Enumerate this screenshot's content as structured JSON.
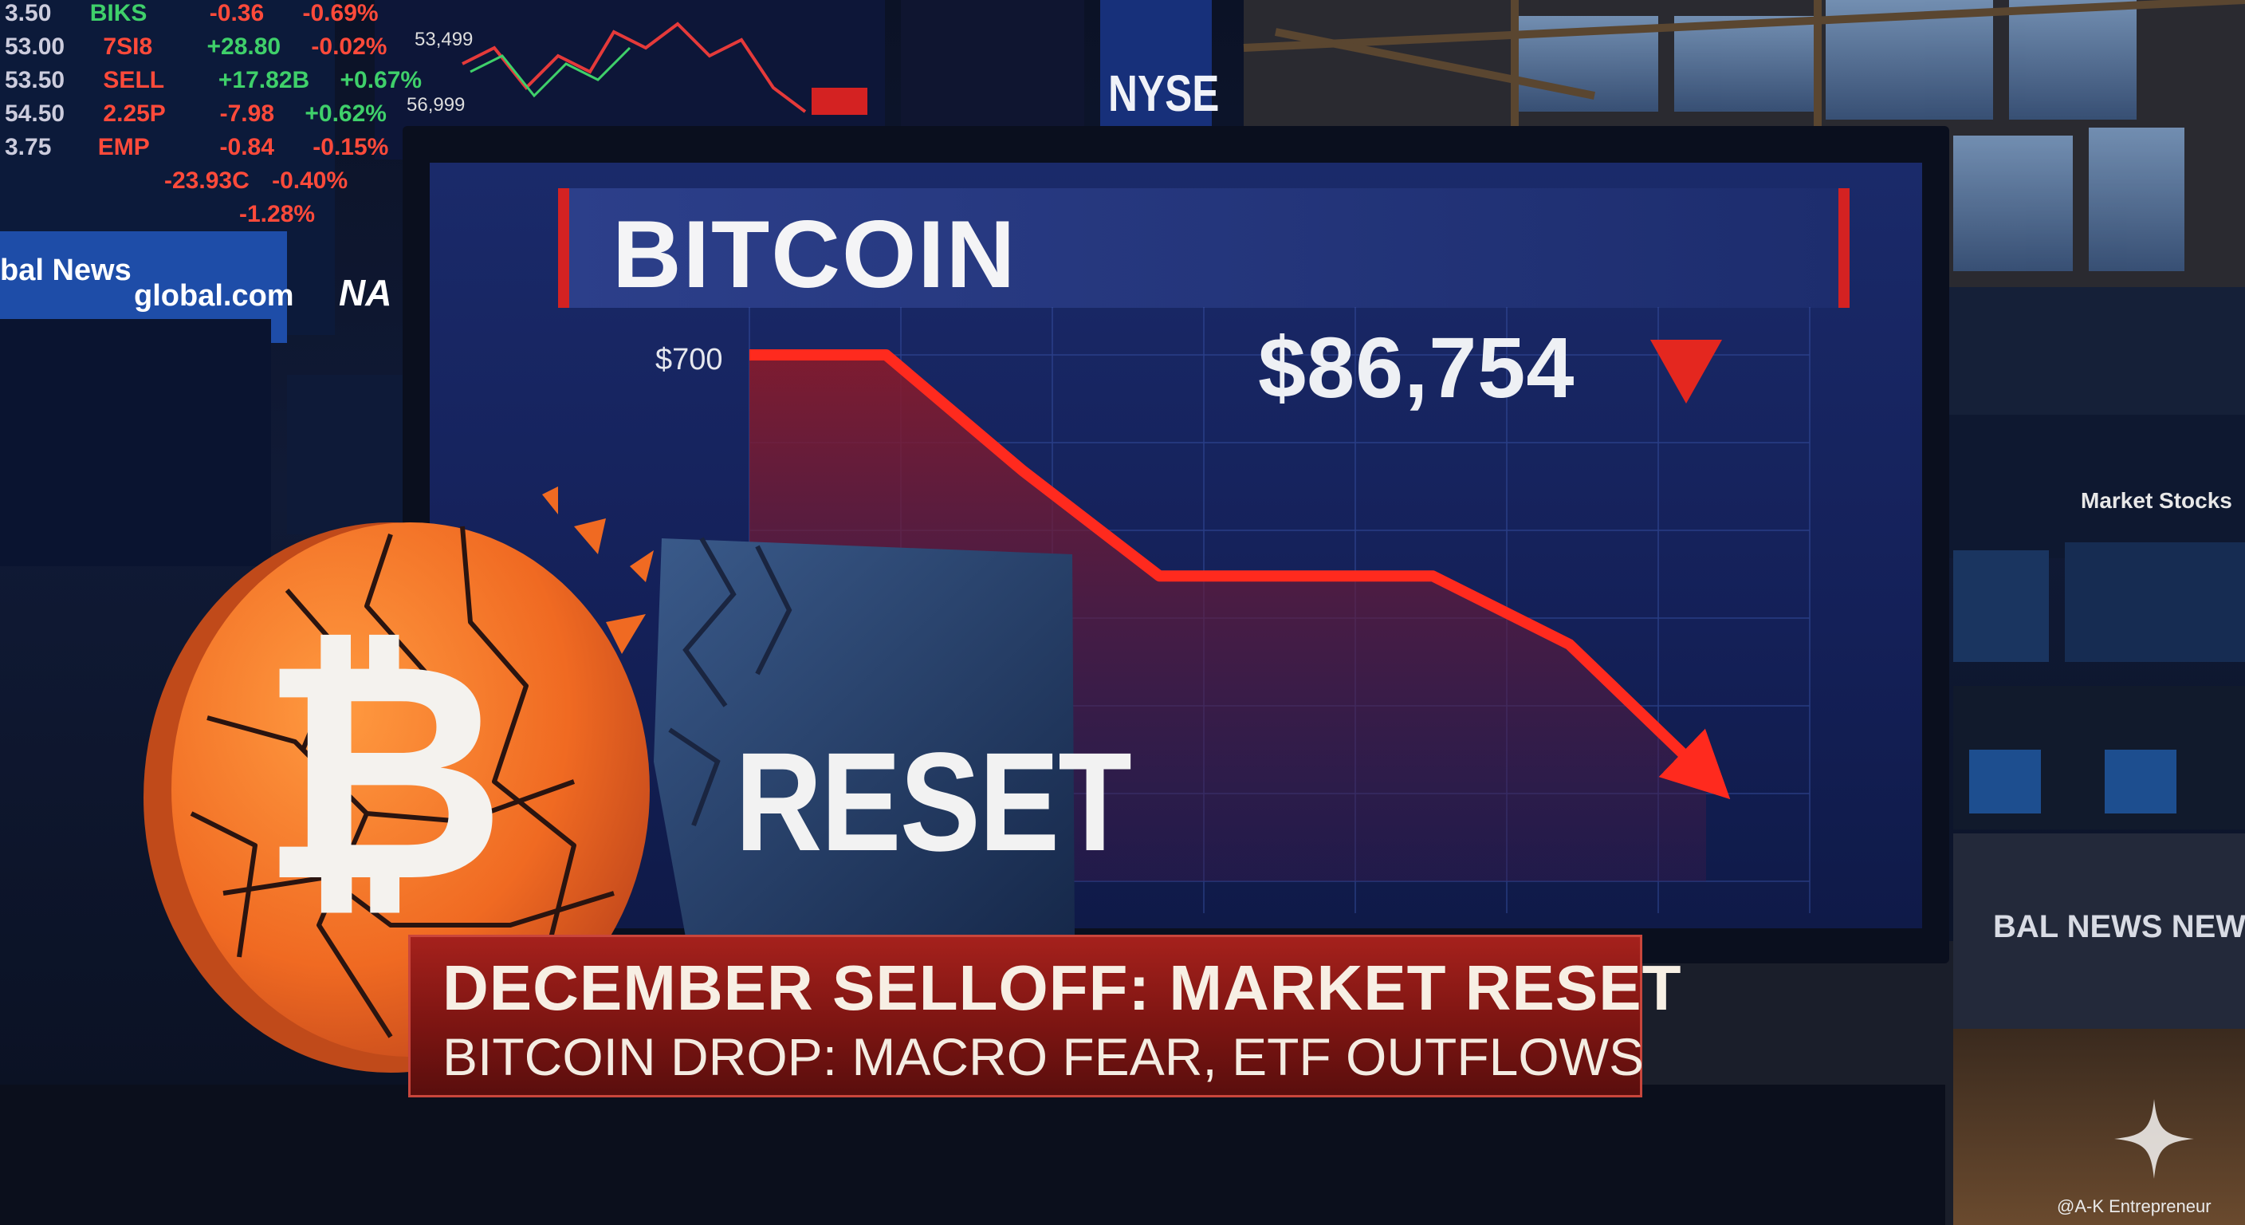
{
  "background_screens": {
    "ticker_left": [
      {
        "price": "3.50",
        "symbol": "BIKS",
        "change": "-0.36",
        "pct": "-0.69%"
      },
      {
        "price": "53.00",
        "symbol": "7SI8",
        "change": "+28.80",
        "pct": "-0.02%"
      },
      {
        "price": "53.50",
        "symbol": "SELL",
        "change": "+17.82B",
        "pct": "+0.67%"
      },
      {
        "price": "54.50",
        "symbol": "2.25P",
        "change": "-7.98",
        "pct": "+0.62%"
      },
      {
        "price": "3.75",
        "symbol": "EMP",
        "change": "-0.84",
        "pct": "-0.15%"
      },
      {
        "price": "",
        "symbol": "",
        "change": "-23.93C",
        "pct": "-0.40%"
      },
      {
        "price": "",
        "symbol": "",
        "change": "",
        "pct": "-1.28%"
      }
    ],
    "news_strip": {
      "left": "bal News",
      "right": "global.com"
    },
    "top_chart_labels": [
      "53,499",
      "56,999"
    ],
    "exchange_sign": "NYSE",
    "partial_sign": "NA",
    "right_strip": "BAL NEWS NEWS FOR",
    "right_board": "Market Stocks"
  },
  "tv_screen": {
    "title": "BITCOIN",
    "price": "$86,754",
    "y_tick": "$700"
  },
  "chart_data": {
    "type": "line",
    "title": "BITCOIN",
    "y_ticks": [
      "$700"
    ],
    "price_label": "$86,754",
    "trend": "down",
    "x": [
      0,
      1,
      2,
      3,
      4,
      5,
      6,
      7
    ],
    "y": [
      100,
      100,
      78,
      58,
      58,
      58,
      45,
      20
    ]
  },
  "coin": {
    "symbol": "₿",
    "card_text": "RESET"
  },
  "banner": {
    "headline": "DECEMBER SELLOFF: MARKET RESET",
    "subline": "BITCOIN DROP: MACRO FEAR, ETF OUTFLOWS"
  },
  "watermark": {
    "text": "@A-K Entrepreneur"
  },
  "colors": {
    "accent_red": "#e4271f",
    "banner_red": "#8e1a16",
    "coin_orange": "#f07a2c",
    "screen_blue": "#1c2f73"
  }
}
